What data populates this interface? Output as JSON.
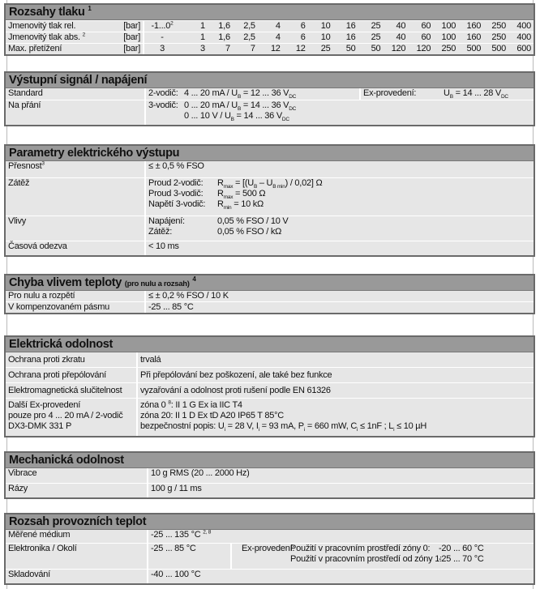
{
  "pressure": {
    "title": "Rozsahy tlaku",
    "title_sup": "1",
    "rows": [
      {
        "label": [
          "Jmenovitý tlak rel."
        ],
        "unit": "[bar]",
        "values": [
          [
            "-1...0",
            {
              "sup": "2"
            }
          ],
          "1",
          "1,6",
          "2,5",
          "4",
          "6",
          "10",
          "16",
          "25",
          "40",
          "60",
          "100",
          "160",
          "250",
          "400"
        ]
      },
      {
        "label": [
          "Jmenovitý tlak abs. ",
          {
            "sup": "2"
          }
        ],
        "unit": "[bar]",
        "values": [
          "-",
          "1",
          "1,6",
          "2,5",
          "4",
          "6",
          "10",
          "16",
          "25",
          "40",
          "60",
          "100",
          "160",
          "250",
          "400"
        ]
      },
      {
        "label": [
          "Max.  přetížení"
        ],
        "unit": "[bar]",
        "values": [
          "3",
          "3",
          "7",
          "7",
          "12",
          "12",
          "25",
          "50",
          "50",
          "120",
          "120",
          "250",
          "500",
          "500",
          "600"
        ]
      }
    ]
  },
  "output": {
    "title": "Výstupní signál / napájení",
    "standard": {
      "label": "Standard",
      "wire": "2-vodič:",
      "value": [
        "4 ... 20 mA  / U",
        {
          "sub": "B"
        },
        " = 12 ... 36 V",
        {
          "sub": "DC"
        }
      ],
      "ex_label": "Ex-provedení:",
      "ex_value": [
        "U",
        {
          "sub": "B"
        },
        " = 14 ... 28 V",
        {
          "sub": "DC"
        }
      ]
    },
    "optional": {
      "label": "Na přání",
      "wire": "3-vodič:",
      "values": [
        [
          "0 ... 20 mA  / U",
          {
            "sub": "B"
          },
          " = 14 ... 36 V",
          {
            "sub": "DC"
          }
        ],
        [
          "0 ... 10 V     / U",
          {
            "sub": "B"
          },
          " = 14 ... 36 V",
          {
            "sub": "DC"
          }
        ]
      ]
    }
  },
  "electrical": {
    "title": "Parametry elektrického výstupu",
    "accuracy": {
      "label": [
        "Přesnost",
        {
          "sup": "3"
        }
      ],
      "value": "≤ ± 0,5 % FSO"
    },
    "load": {
      "label": "Zátěž",
      "items": [
        {
          "k": "Proud 2-vodič:",
          "v": [
            "R",
            {
              "sub": "max"
            },
            " = [(U",
            {
              "sub": "B"
            },
            " – U",
            {
              "sub": "B min"
            },
            ") / 0,02] Ω"
          ]
        },
        {
          "k": "Proud 3-vodič:",
          "v": [
            "R",
            {
              "sub": "max"
            },
            " = 500 Ω"
          ]
        },
        {
          "k": "Napětí 3-vodič:",
          "v": [
            "R",
            {
              "sub": "min"
            },
            " = 10 kΩ"
          ]
        }
      ]
    },
    "influence": {
      "label": "Vlivy",
      "items": [
        {
          "k": "Napájení:",
          "v": [
            "0,05 % FSO / 10 V"
          ]
        },
        {
          "k": "Zátěž:",
          "v": [
            "0,05 % FSO / kΩ"
          ]
        }
      ]
    },
    "response": {
      "label": "Časová odezva",
      "value": "< 10 ms"
    }
  },
  "thermal": {
    "title": "Chyba vlivem teploty",
    "title_small": "(pro nulu a rozsah)",
    "title_sup": "4",
    "rows": [
      {
        "label": "Pro nulu a rozpětí",
        "value": "≤ ± 0,2 % FSO / 10 K"
      },
      {
        "label": "V kompenzovaném pásmu",
        "value": "-25 ... 85 °C"
      }
    ]
  },
  "resistance": {
    "title": "Elektrická odolnost",
    "rows": [
      {
        "label": "Ochrana proti zkratu",
        "value": "trvalá"
      },
      {
        "label": "Ochrana proti přepólování",
        "value": "Při přepólování bez poškození, ale také bez funkce"
      },
      {
        "label": "Elektromagnetická slučitelnost",
        "value": "vyzařování a odolnost proti rušení podle EN 61326"
      }
    ],
    "ex": {
      "label": [
        "Další Ex-provedení",
        "pouze pro 4 ... 20 mA / 2-vodič",
        "DX3-DMK 331 P"
      ],
      "values": [
        [
          "zóna 0 ",
          {
            "sup": "8"
          },
          ": II 1 G  Ex ia IIC T4"
        ],
        [
          "zóna 20: II 1 D  Ex tD A20 IP65 T 85°C"
        ],
        [
          "bezpečnostní popis: U",
          {
            "sub": "i"
          },
          " = 28 V, I",
          {
            "sub": "i"
          },
          " = 93 mA, P",
          {
            "sub": "i"
          },
          " = 660 mW, C",
          {
            "sub": "i"
          },
          " ≤ 1nF ; L",
          {
            "sub": "i"
          },
          " ≤ 10 µH"
        ]
      ]
    }
  },
  "mechanical": {
    "title": "Mechanická odolnost",
    "rows": [
      {
        "label": "Vibrace",
        "value": "10 g RMS (20 ... 2000 Hz)"
      },
      {
        "label": "Rázy",
        "value": "100 g / 11 ms"
      }
    ]
  },
  "temps": {
    "title": "Rozsah provozních teplot",
    "medium": {
      "label": "Měřené médium",
      "value": [
        "-25 ... 135 °C ",
        {
          "sup": "2, 8"
        }
      ]
    },
    "electronics": {
      "label": "Elektronika / Okolí",
      "value": "-25 ...  85 °C",
      "ex_label": "Ex-provedení:",
      "ex_rows": [
        {
          "k": "Použití v pracovním prostředí zóny 0:",
          "v": "-20 ... 60 °C"
        },
        {
          "k": "Použití v pracovním prostředí od zóny 1:",
          "v": "-25 ... 70 °C"
        }
      ]
    },
    "storage": {
      "label": "Skladování",
      "value": "-40 ... 100 °C"
    }
  }
}
